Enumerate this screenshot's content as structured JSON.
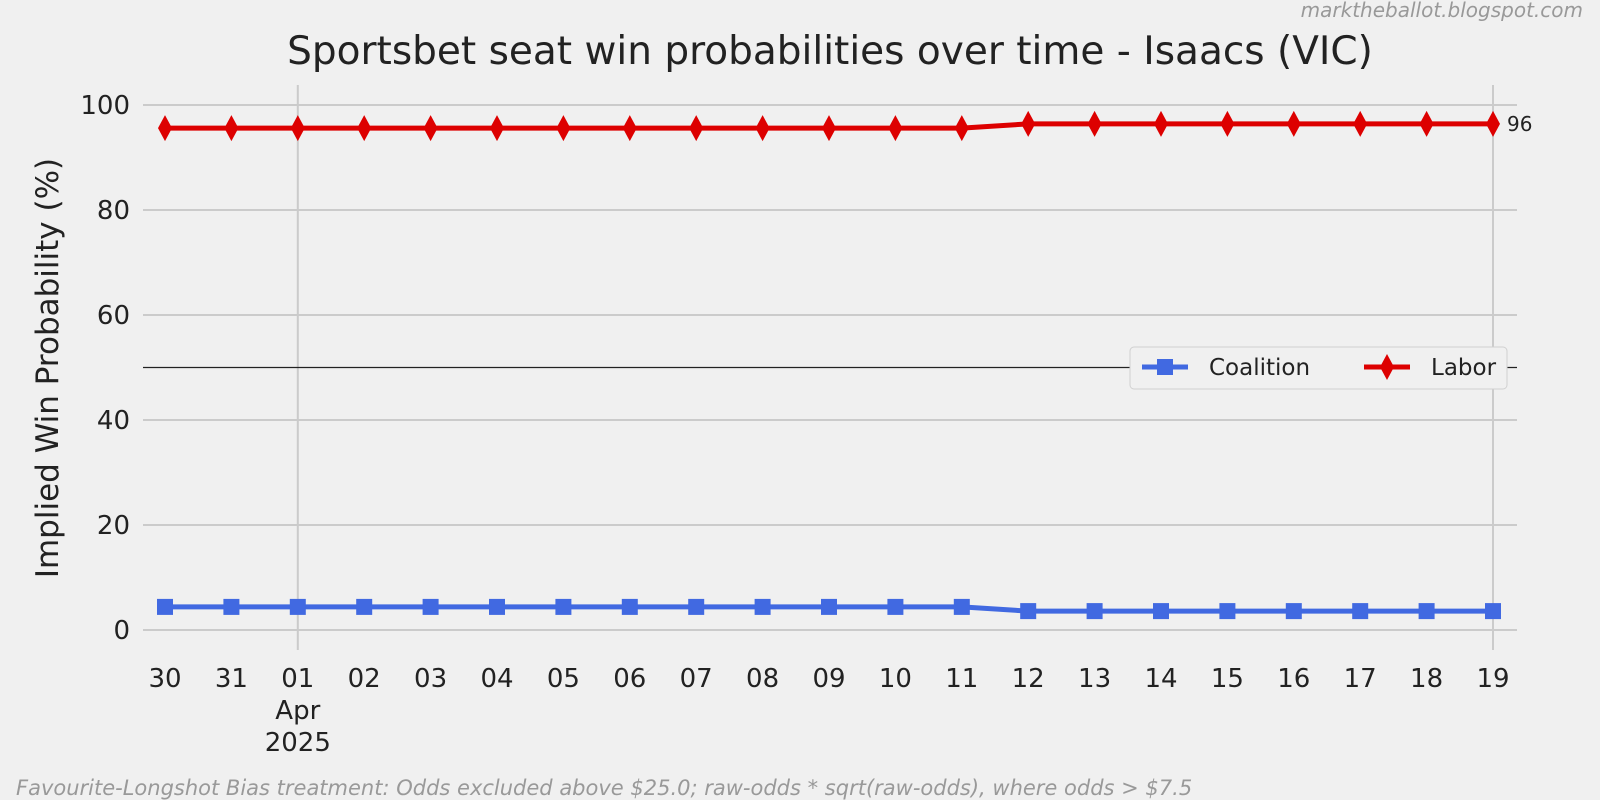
{
  "chart_data": {
    "type": "line",
    "title": "Sportsbet seat win probabilities over time - Isaacs (VIC)",
    "y_label": "Implied Win Probability (%)",
    "watermark": "marktheballot.blogspot.com",
    "footnote": "Favourite-Longshot Bias treatment: Odds excluded above $25.0; raw-odds * sqrt(raw-odds), where odds > $7.5",
    "categories": [
      "30",
      "31",
      "01",
      "02",
      "03",
      "04",
      "05",
      "06",
      "07",
      "08",
      "09",
      "10",
      "11",
      "12",
      "13",
      "14",
      "15",
      "16",
      "17",
      "18",
      "19"
    ],
    "x_month_label": "Apr",
    "x_year_label": "2025",
    "ylim": [
      0,
      100
    ],
    "yticks": [
      0,
      20,
      40,
      60,
      80,
      100
    ],
    "grid": true,
    "hline": 50,
    "legend": "center right",
    "series": [
      {
        "name": "Coalition",
        "color": "#4169e1",
        "marker": "square",
        "values": [
          4.4,
          4.4,
          4.4,
          4.4,
          4.4,
          4.4,
          4.4,
          4.4,
          4.4,
          4.4,
          4.4,
          4.4,
          4.4,
          3.6,
          3.6,
          3.6,
          3.6,
          3.6,
          3.6,
          3.6,
          3.6
        ]
      },
      {
        "name": "Labor",
        "color": "#dd0000",
        "marker": "diamond",
        "end_label": 96,
        "values": [
          95.6,
          95.6,
          95.6,
          95.6,
          95.6,
          95.6,
          95.6,
          95.6,
          95.6,
          95.6,
          95.6,
          95.6,
          95.6,
          96.4,
          96.4,
          96.4,
          96.4,
          96.4,
          96.4,
          96.4,
          96.4
        ]
      }
    ]
  }
}
